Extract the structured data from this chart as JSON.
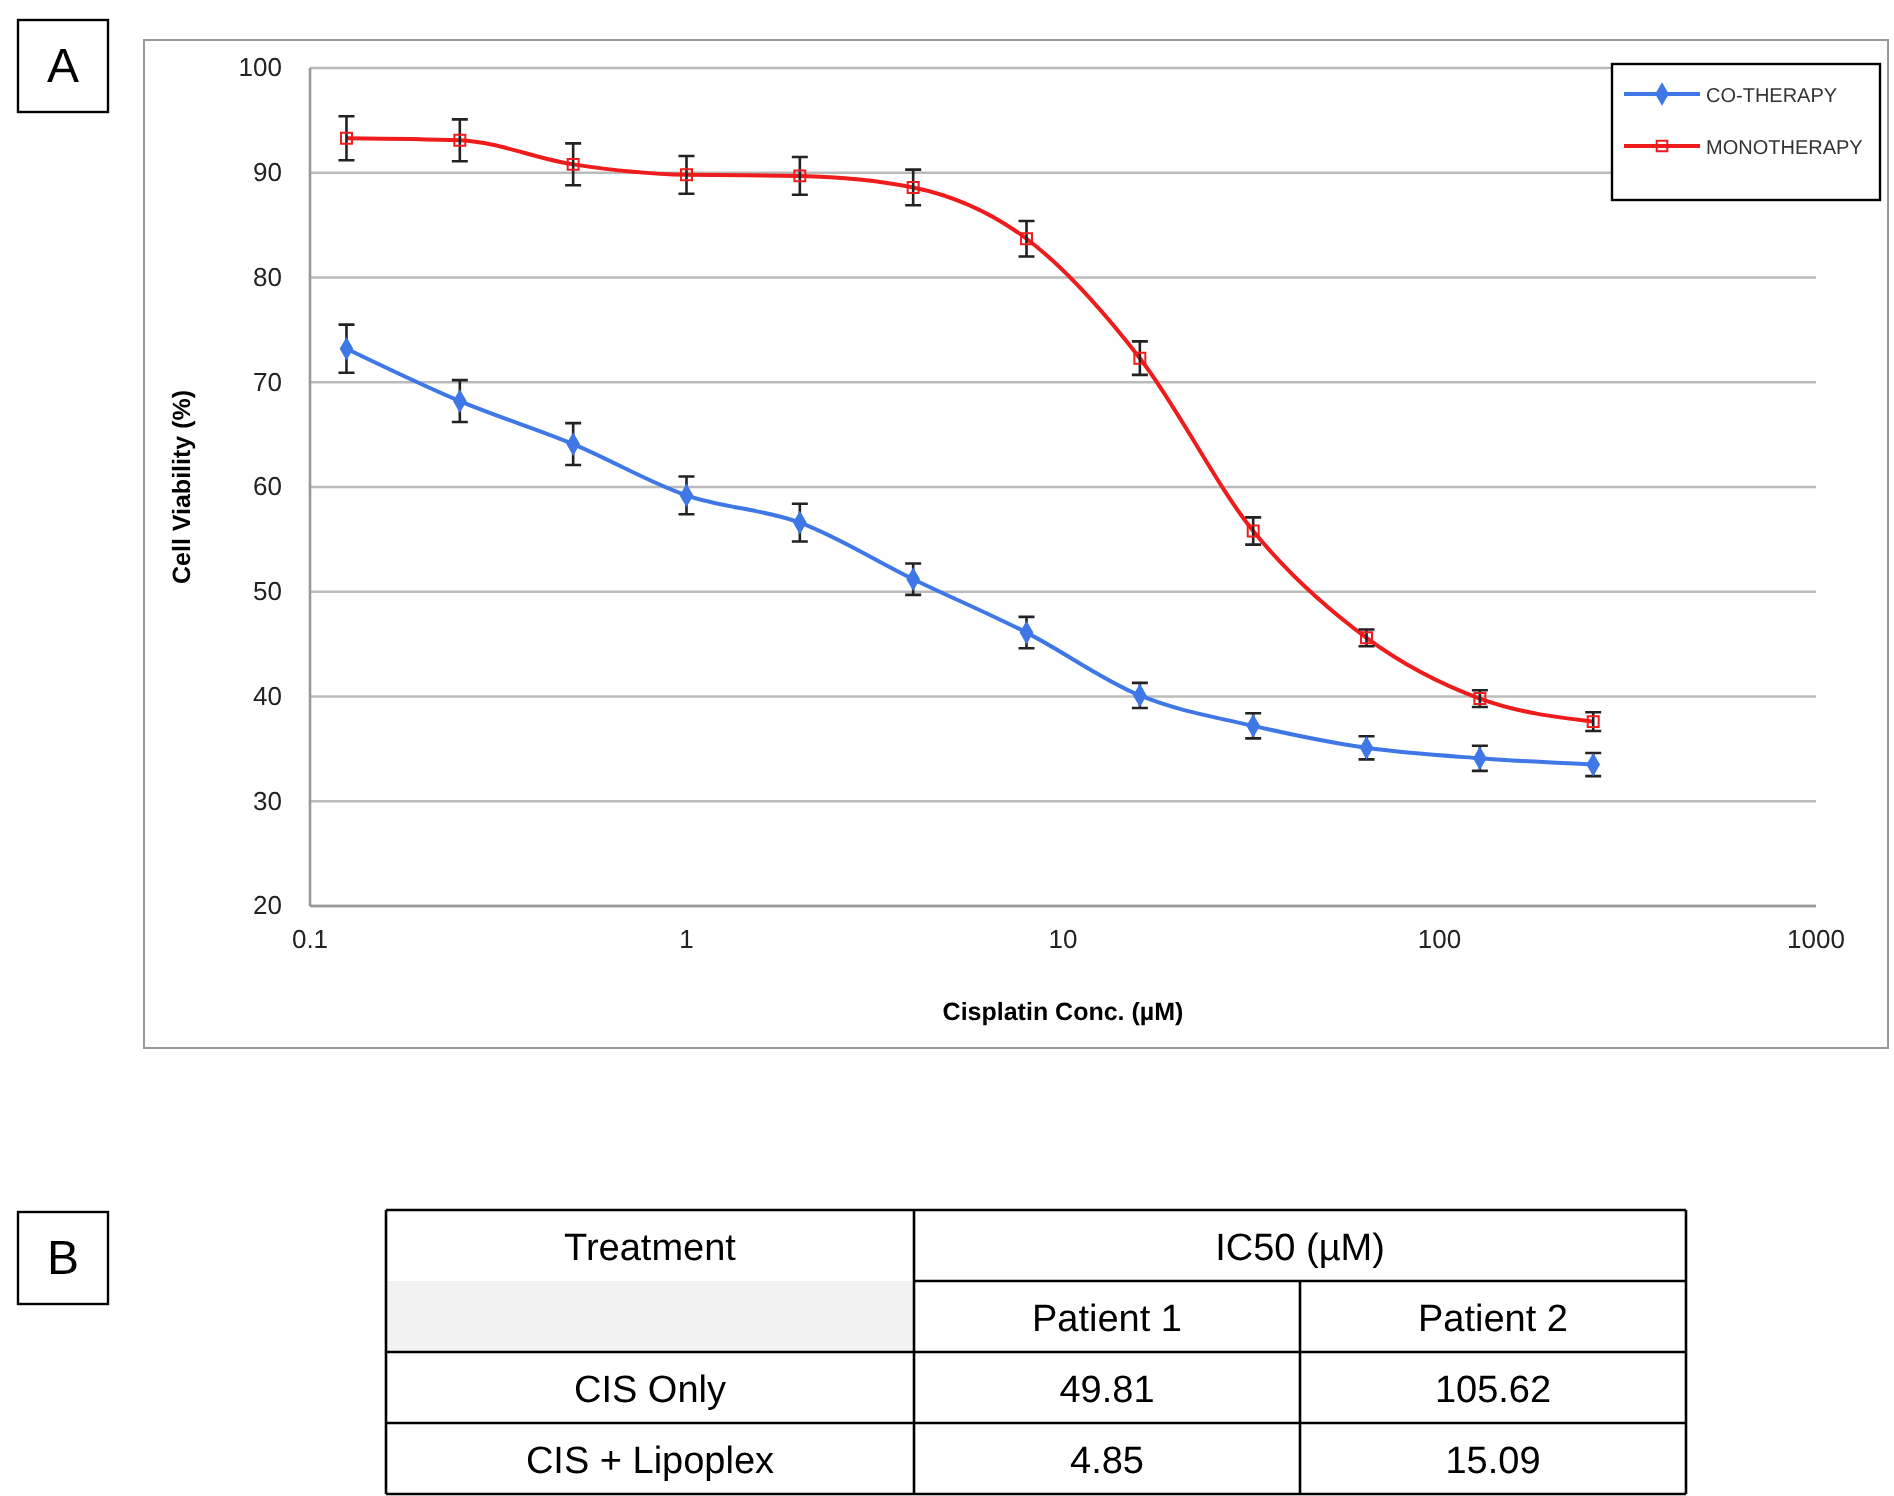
{
  "chart_data": [
    {
      "type": "line",
      "annotations": [
        "A"
      ],
      "xlabel": "Cisplatin Conc. (µM)",
      "ylabel": "Cell Viability (%)",
      "log": "x",
      "xlim": [
        0.1,
        1000
      ],
      "xticks": [
        0.1,
        1,
        10,
        100,
        1000
      ],
      "ylim": [
        20,
        100
      ],
      "yticks": [
        20,
        30,
        40,
        50,
        60,
        70,
        80,
        90,
        100
      ],
      "grid": "y",
      "legend": "top right",
      "x": [
        0.125,
        0.25,
        0.5,
        1,
        2,
        4,
        8,
        16,
        32,
        64,
        128,
        256
      ],
      "series": [
        {
          "name": "CO-THERAPY",
          "color": "#3f78e6",
          "marker": "diamond",
          "values": [
            73.2,
            68.2,
            64.1,
            59.2,
            56.6,
            51.2,
            46.1,
            40.1,
            37.2,
            35.1,
            34.1,
            33.5
          ],
          "errors": [
            2.3,
            2,
            2,
            1.8,
            1.8,
            1.5,
            1.5,
            1.2,
            1.2,
            1.1,
            1.2,
            1.1
          ]
        },
        {
          "name": "MONOTHERAPY",
          "color": "#ee1c1c",
          "marker": "square",
          "values": [
            93.3,
            93.1,
            90.8,
            89.8,
            89.7,
            88.6,
            83.7,
            72.3,
            55.8,
            45.6,
            39.8,
            37.6
          ],
          "errors": [
            2.1,
            2,
            2,
            1.8,
            1.8,
            1.7,
            1.7,
            1.6,
            1.3,
            0.8,
            0.8,
            0.9
          ]
        }
      ]
    },
    {
      "type": "other",
      "annotations": [
        "B"
      ],
      "xlabel": "Treatment",
      "ylabel": "IC50 (µM)",
      "categories": [
        "CIS Only",
        "CIS + Lipoplex"
      ],
      "data_labels": true,
      "series": [
        {
          "name": "Patient 1",
          "values": [
            49.81,
            4.85
          ]
        },
        {
          "name": "Patient 2",
          "values": [
            105.62,
            15.09
          ]
        }
      ]
    }
  ]
}
